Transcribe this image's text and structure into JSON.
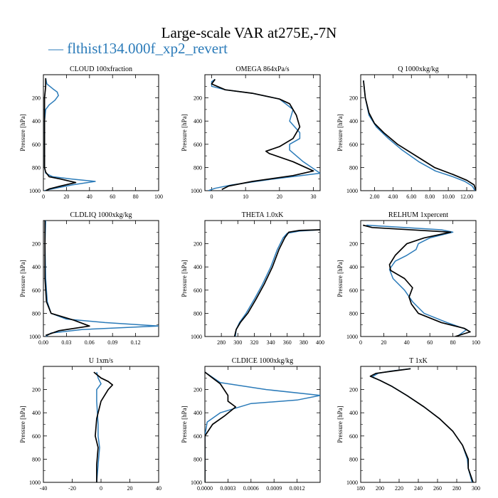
{
  "title": "Large-scale VAR at275E,-7N",
  "legend": {
    "label": "— flthist134.000f_xp2_revert",
    "color": "#2b7bb9"
  },
  "colors": {
    "case": "#2b7bb9",
    "reference": "#000000"
  },
  "ylabel": "Pressure [hPa]",
  "chart_data": [
    {
      "type": "line",
      "title": "CLOUD  100xfraction",
      "xlim": [
        0,
        100
      ],
      "ylim": [
        0,
        1000
      ],
      "xticks": [
        0,
        20,
        40,
        60,
        80,
        100
      ],
      "xticklabels": [
        "0",
        "20",
        "40",
        "60",
        "80",
        "100"
      ],
      "yticks": [
        200,
        400,
        600,
        800,
        1000
      ],
      "series": [
        {
          "name": "flthist134.000f_xp2_revert",
          "color": "#2b7bb9",
          "x": [
            2,
            3,
            8,
            12,
            13,
            10,
            5,
            2,
            1,
            1,
            1,
            2,
            8,
            25,
            45,
            25,
            5,
            1
          ],
          "y": [
            30,
            80,
            120,
            150,
            180,
            220,
            260,
            300,
            400,
            600,
            800,
            850,
            880,
            900,
            920,
            950,
            990,
            1000
          ]
        },
        {
          "color": "#000000",
          "x": [
            2,
            2,
            1,
            1,
            1,
            1,
            1,
            2,
            5,
            15,
            28,
            15,
            5,
            2
          ],
          "y": [
            30,
            100,
            200,
            300,
            500,
            700,
            800,
            840,
            880,
            900,
            930,
            960,
            985,
            1000
          ]
        }
      ]
    },
    {
      "type": "line",
      "title": "OMEGA  864xPa/s",
      "xlim": [
        -2,
        32
      ],
      "ylim": [
        0,
        1000
      ],
      "xticks": [
        0,
        10,
        20,
        30
      ],
      "xticklabels": [
        "0",
        "10",
        "20",
        "30"
      ],
      "yticks": [
        200,
        400,
        600,
        800,
        1000
      ],
      "series": [
        {
          "color": "#2b7bb9",
          "x": [
            1,
            0,
            0,
            4,
            12,
            20,
            24,
            23,
            26,
            26,
            23,
            23,
            27,
            32,
            18,
            6,
            1,
            -1
          ],
          "y": [
            40,
            60,
            100,
            130,
            160,
            210,
            300,
            400,
            500,
            550,
            600,
            650,
            750,
            850,
            900,
            950,
            980,
            1000
          ]
        },
        {
          "color": "#000000",
          "x": [
            1,
            0,
            4,
            12,
            20,
            23,
            25,
            26,
            24,
            20,
            16,
            17,
            24,
            30,
            24,
            12,
            5,
            3
          ],
          "y": [
            40,
            80,
            130,
            160,
            210,
            250,
            350,
            450,
            550,
            620,
            660,
            680,
            750,
            830,
            870,
            920,
            960,
            990
          ]
        }
      ]
    },
    {
      "type": "line",
      "title": "Q  1000xkg/kg",
      "xlim": [
        0.5,
        13
      ],
      "ylim": [
        0,
        1000
      ],
      "xticks": [
        2,
        4,
        6,
        8,
        10,
        12
      ],
      "xticklabels": [
        "2.00",
        "4.00",
        "6.00",
        "8.00",
        "10.00",
        "12.00"
      ],
      "yticks": [
        200,
        400,
        600,
        800,
        1000
      ],
      "series": [
        {
          "color": "#2b7bb9",
          "x": [
            0.8,
            1,
            1.4,
            2.2,
            3.5,
            5,
            6.8,
            8.6,
            10.5,
            11.8,
            12.6,
            12.9
          ],
          "y": [
            50,
            200,
            350,
            450,
            550,
            650,
            750,
            830,
            880,
            920,
            960,
            1000
          ]
        },
        {
          "color": "#000000",
          "x": [
            0.8,
            1,
            1.4,
            2,
            3,
            4.5,
            6.5,
            8.5,
            10.5,
            12,
            12.8,
            13
          ],
          "y": [
            50,
            200,
            330,
            420,
            500,
            600,
            700,
            800,
            860,
            910,
            950,
            1000
          ]
        }
      ]
    },
    {
      "type": "line",
      "title": "CLDLIQ  1000xkg/kg",
      "xlim": [
        0,
        0.15
      ],
      "ylim": [
        0,
        1000
      ],
      "xticks": [
        0,
        0.03,
        0.06,
        0.09,
        0.12
      ],
      "xticklabels": [
        "0.00",
        "0.03",
        "0.06",
        "0.09",
        "0.12"
      ],
      "yticks": [
        200,
        400,
        600,
        800,
        1000
      ],
      "series": [
        {
          "color": "#2b7bb9",
          "x": [
            0.003,
            0.002,
            0.003,
            0.005,
            0.01,
            0.03,
            0.08,
            0.15,
            0.05,
            0.01,
            0.003
          ],
          "y": [
            0,
            200,
            500,
            700,
            800,
            850,
            880,
            910,
            940,
            970,
            1000
          ]
        },
        {
          "color": "#000000",
          "x": [
            0.002,
            0.002,
            0.002,
            0.004,
            0.01,
            0.04,
            0.06,
            0.02,
            0.003
          ],
          "y": [
            0,
            200,
            500,
            700,
            800,
            860,
            910,
            950,
            990
          ]
        }
      ]
    },
    {
      "type": "line",
      "title": "THETA  1.0xK",
      "xlim": [
        260,
        400
      ],
      "ylim": [
        0,
        1000
      ],
      "xticks": [
        280,
        300,
        320,
        340,
        360,
        380,
        400
      ],
      "xticklabels": [
        "280",
        "300",
        "320",
        "340",
        "360",
        "380",
        "400"
      ],
      "yticks": [
        200,
        400,
        600,
        800,
        1000
      ],
      "series": [
        {
          "color": "#2b7bb9",
          "x": [
            400,
            375,
            360,
            355,
            348,
            340,
            330,
            320,
            310,
            302,
            298,
            297
          ],
          "y": [
            80,
            90,
            110,
            150,
            250,
            400,
            550,
            680,
            800,
            880,
            940,
            1000
          ]
        },
        {
          "color": "#000000",
          "x": [
            400,
            375,
            362,
            357,
            350,
            342,
            332,
            322,
            312,
            303,
            298,
            296
          ],
          "y": [
            80,
            85,
            100,
            150,
            250,
            400,
            550,
            680,
            800,
            880,
            940,
            1000
          ]
        }
      ]
    },
    {
      "type": "line",
      "title": "RELHUM  1xpercent",
      "xlim": [
        0,
        100
      ],
      "ylim": [
        0,
        1000
      ],
      "xticks": [
        0,
        20,
        40,
        60,
        80,
        100
      ],
      "xticklabels": [
        "0",
        "20",
        "40",
        "60",
        "80",
        "100"
      ],
      "yticks": [
        200,
        400,
        600,
        800,
        1000
      ],
      "series": [
        {
          "color": "#2b7bb9",
          "x": [
            5,
            70,
            80,
            60,
            50,
            48,
            40,
            30,
            25,
            28,
            38,
            45,
            55,
            75,
            92,
            85
          ],
          "y": [
            40,
            80,
            100,
            150,
            200,
            250,
            300,
            350,
            420,
            500,
            600,
            700,
            800,
            880,
            940,
            990
          ]
        },
        {
          "color": "#000000",
          "x": [
            2,
            10,
            78,
            55,
            40,
            30,
            25,
            26,
            38,
            45,
            42,
            44,
            50,
            70,
            90,
            95,
            82
          ],
          "y": [
            40,
            60,
            100,
            150,
            200,
            300,
            380,
            430,
            500,
            580,
            660,
            720,
            800,
            880,
            930,
            960,
            1000
          ]
        }
      ]
    },
    {
      "type": "line",
      "title": "U  1xm/s",
      "xlim": [
        -40,
        40
      ],
      "ylim": [
        0,
        1000
      ],
      "xticks": [
        -40,
        -20,
        0,
        20,
        40
      ],
      "xticklabels": [
        "-40",
        "-20",
        "0",
        "20",
        "40"
      ],
      "yticks": [
        200,
        400,
        600,
        800,
        1000
      ],
      "series": [
        {
          "color": "#2b7bb9",
          "x": [
            -3,
            -2,
            0,
            -3,
            -3,
            -2,
            -2,
            -1,
            -2,
            -3
          ],
          "y": [
            50,
            100,
            150,
            200,
            300,
            500,
            600,
            700,
            850,
            1000
          ]
        },
        {
          "color": "#000000",
          "x": [
            -5,
            0,
            5,
            8,
            5,
            0,
            -3,
            -4,
            -2,
            -3,
            -3
          ],
          "y": [
            50,
            100,
            130,
            160,
            200,
            300,
            450,
            600,
            700,
            850,
            1000
          ]
        }
      ]
    },
    {
      "type": "line",
      "title": "CLDICE  1000xkg/kg",
      "xlim": [
        0,
        0.0015
      ],
      "ylim": [
        0,
        1000
      ],
      "xticks": [
        0,
        0.0003,
        0.0006,
        0.0009,
        0.0012
      ],
      "xticklabels": [
        "0.0000",
        "0.0003",
        "0.0006",
        "0.0009",
        "0.0012"
      ],
      "yticks": [
        200,
        400,
        600,
        800,
        1000
      ],
      "series": [
        {
          "color": "#2b7bb9",
          "x": [
            0,
            0.0002,
            0.0008,
            0.0015,
            0.0012,
            0.0006,
            0.0002,
            3e-05,
            0,
            0
          ],
          "y": [
            50,
            140,
            200,
            250,
            290,
            320,
            400,
            480,
            600,
            1000
          ]
        },
        {
          "color": "#000000",
          "x": [
            0,
            0.0001,
            0.0002,
            0.00025,
            0.0003,
            0.0003,
            0.0004,
            0.00025,
            0.0001,
            0,
            0
          ],
          "y": [
            50,
            100,
            150,
            200,
            250,
            300,
            350,
            430,
            500,
            600,
            1000
          ]
        }
      ]
    },
    {
      "type": "line",
      "title": "T  1xK",
      "xlim": [
        180,
        300
      ],
      "ylim": [
        0,
        1000
      ],
      "xticks": [
        180,
        200,
        220,
        240,
        260,
        280,
        300
      ],
      "xticklabels": [
        "180",
        "200",
        "220",
        "240",
        "260",
        "280",
        "300"
      ],
      "yticks": [
        200,
        400,
        600,
        800,
        1000
      ],
      "series": [
        {
          "color": "#2b7bb9",
          "x": [
            232,
            212,
            198,
            192,
            200,
            212,
            228,
            246,
            262,
            276,
            286,
            291,
            292,
            296
          ],
          "y": [
            20,
            40,
            60,
            90,
            120,
            170,
            250,
            350,
            450,
            560,
            680,
            800,
            880,
            1000
          ]
        },
        {
          "color": "#000000",
          "x": [
            232,
            214,
            196,
            190,
            200,
            212,
            228,
            246,
            262,
            276,
            286,
            292,
            292,
            297
          ],
          "y": [
            20,
            40,
            60,
            85,
            120,
            170,
            250,
            350,
            450,
            560,
            680,
            800,
            880,
            1000
          ]
        }
      ]
    }
  ]
}
